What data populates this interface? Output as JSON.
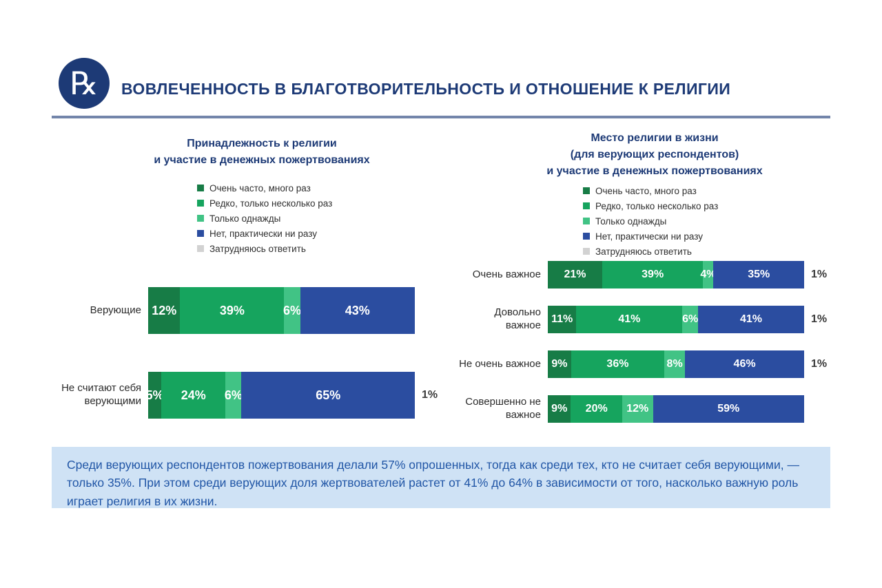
{
  "header": {
    "title": "ВОВЛЕЧЕННОСТЬ В БЛАГОТВОРИТЕЛЬНОСТЬ И ОТНОШЕНИЕ К РЕЛИГИИ",
    "logo_glyph": "℞"
  },
  "colors": {
    "navy": "#1d3a76",
    "very_often_green": "#177c46",
    "rarely_green": "#16a45e",
    "once_green": "#41c385",
    "never_blue": "#2b4da0",
    "undecided_gray": "#d2d2d2",
    "note_background": "#cfe2f5",
    "note_text": "#2156a6"
  },
  "chart_data": [
    {
      "type": "bar",
      "stacked": true,
      "orientation": "horizontal",
      "unit": "%",
      "title": "Принадлежность к религии и участие в денежных пожертвованиях",
      "title_lines": [
        "Принадлежность к религии",
        "и участие в денежных пожертвованиях"
      ],
      "legend_position": "top",
      "categories": [
        "Верующие",
        "Не считают себя верующими"
      ],
      "category_lines": [
        [
          "Верующие"
        ],
        [
          "Не считают себя",
          "верующими"
        ]
      ],
      "series": [
        {
          "name": "Очень часто, много раз",
          "color": "#177c46",
          "values": [
            12,
            5
          ]
        },
        {
          "name": "Редко, только несколько раз",
          "color": "#16a45e",
          "values": [
            39,
            24
          ]
        },
        {
          "name": "Только однажды",
          "color": "#41c385",
          "values": [
            6,
            6
          ]
        },
        {
          "name": "Нет, практически ни разу",
          "color": "#2b4da0",
          "values": [
            43,
            65
          ]
        },
        {
          "name": "Затрудняюсь ответить",
          "color": "#d2d2d2",
          "values": [
            0,
            1
          ],
          "render": "outside"
        }
      ]
    },
    {
      "type": "bar",
      "stacked": true,
      "orientation": "horizontal",
      "unit": "%",
      "title": "Место религии в жизни (для верующих респондентов) и участие в денежных пожертвованиях",
      "title_lines": [
        "Место религии в жизни",
        "(для верующих респондентов)",
        "и участие в денежных пожертвованиях"
      ],
      "legend_position": "top",
      "categories": [
        "Очень важное",
        "Довольно важное",
        "Не очень важное",
        "Совершенно не важное"
      ],
      "category_lines": [
        [
          "Очень важное"
        ],
        [
          "Довольно",
          "важное"
        ],
        [
          "Не очень важное"
        ],
        [
          "Совершенно не",
          "важное"
        ]
      ],
      "series": [
        {
          "name": "Очень часто, много раз",
          "color": "#177c46",
          "values": [
            21,
            11,
            9,
            9
          ]
        },
        {
          "name": "Редко, только несколько раз",
          "color": "#16a45e",
          "values": [
            39,
            41,
            36,
            20
          ]
        },
        {
          "name": "Только однажды",
          "color": "#41c385",
          "values": [
            4,
            6,
            8,
            12
          ]
        },
        {
          "name": "Нет, практически ни разу",
          "color": "#2b4da0",
          "values": [
            35,
            41,
            46,
            59
          ]
        },
        {
          "name": "Затрудняюсь ответить",
          "color": "#d2d2d2",
          "values": [
            1,
            1,
            1,
            0
          ],
          "render": "outside"
        }
      ]
    }
  ],
  "footnote": "Среди верующих респондентов пожертвования делали 57% опрошенных, тогда как среди тех, кто не считает себя верующими, — только 35%. При этом среди верующих доля жертвователей растет от 41% до 64% в зависимости от того, насколько важную роль играет религия в их жизни."
}
